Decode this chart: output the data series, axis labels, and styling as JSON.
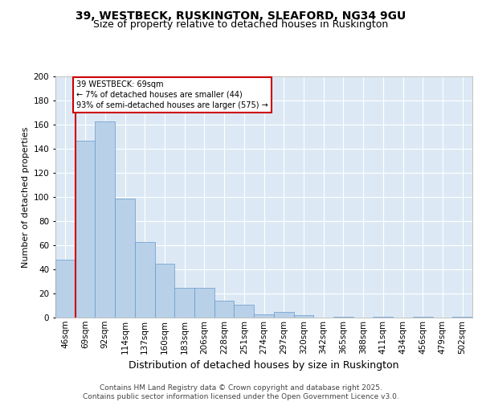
{
  "title_line1": "39, WESTBECK, RUSKINGTON, SLEAFORD, NG34 9GU",
  "title_line2": "Size of property relative to detached houses in Ruskington",
  "xlabel": "Distribution of detached houses by size in Ruskington",
  "ylabel": "Number of detached properties",
  "bar_values": [
    48,
    147,
    163,
    99,
    63,
    45,
    25,
    25,
    14,
    11,
    3,
    5,
    2,
    0,
    1,
    0,
    1,
    0,
    1,
    0,
    1
  ],
  "bar_labels": [
    "46sqm",
    "69sqm",
    "92sqm",
    "114sqm",
    "137sqm",
    "160sqm",
    "183sqm",
    "206sqm",
    "228sqm",
    "251sqm",
    "274sqm",
    "297sqm",
    "320sqm",
    "342sqm",
    "365sqm",
    "388sqm",
    "411sqm",
    "434sqm",
    "456sqm",
    "479sqm",
    "502sqm"
  ],
  "bar_color": "#b8d0e8",
  "bar_edge_color": "#6699cc",
  "annotation_box_text": "39 WESTBECK: 69sqm\n← 7% of detached houses are smaller (44)\n93% of semi-detached houses are larger (575) →",
  "annotation_box_color": "#ffffff",
  "annotation_box_edge_color": "#cc0000",
  "vline_color": "#cc0000",
  "ylim": [
    0,
    200
  ],
  "yticks": [
    0,
    20,
    40,
    60,
    80,
    100,
    120,
    140,
    160,
    180,
    200
  ],
  "background_color": "#dce9f5",
  "footer_text": "Contains HM Land Registry data © Crown copyright and database right 2025.\nContains public sector information licensed under the Open Government Licence v3.0.",
  "title_fontsize": 10,
  "subtitle_fontsize": 9,
  "xlabel_fontsize": 9,
  "ylabel_fontsize": 8,
  "tick_fontsize": 7.5,
  "footer_fontsize": 6.5
}
